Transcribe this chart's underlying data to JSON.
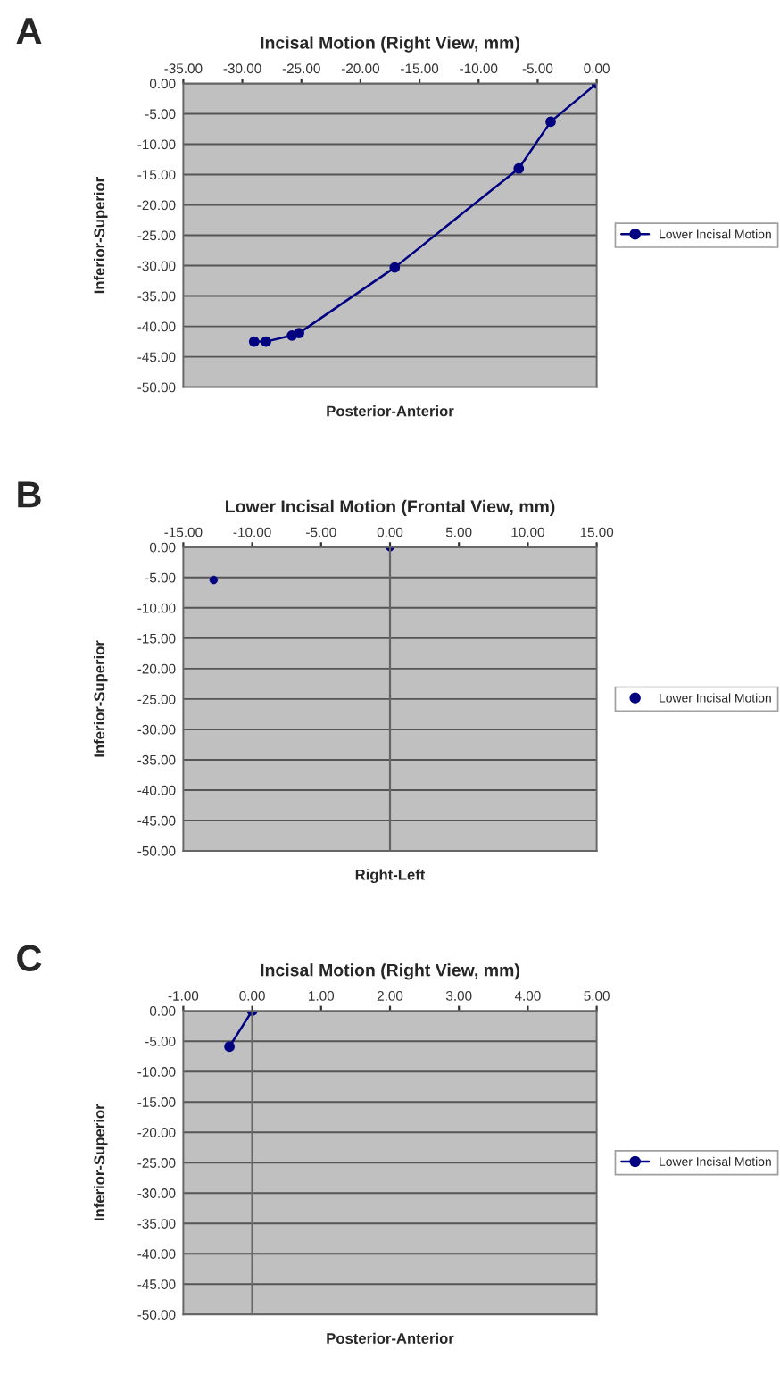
{
  "chart_data": [
    {
      "type": "line",
      "title": "Incisal Motion (Right View, mm)",
      "xlabel": "Posterior-Anterior",
      "ylabel": "Inferior-Superior",
      "annotations": [
        "A"
      ],
      "series": [
        {
          "name": "Lower Incisal Motion",
          "color": "#000080",
          "x": [
            0,
            -3.9,
            -6.6,
            -17.1,
            -25.2,
            -25.8,
            -28.0,
            -29.0
          ],
          "values": [
            0,
            -6.3,
            -14.0,
            -30.3,
            -41.1,
            -41.5,
            -42.5,
            -42.5
          ]
        }
      ],
      "xlim": [
        -35,
        0
      ],
      "xticks": [
        {
          "value": -35,
          "label": "-35.00"
        },
        {
          "value": -30,
          "label": "-30.00"
        },
        {
          "value": -25,
          "label": "-25.00"
        },
        {
          "value": -20,
          "label": "-20.00"
        },
        {
          "value": -15,
          "label": "-15.00"
        },
        {
          "value": -10,
          "label": "-10.00"
        },
        {
          "value": -5,
          "label": "-5.00"
        },
        {
          "value": 0,
          "label": "0.00"
        }
      ],
      "ylim": [
        -50,
        0
      ],
      "yticks": [
        {
          "value": 0,
          "label": "0.00"
        },
        {
          "value": -5,
          "label": "-5.00"
        },
        {
          "value": -10,
          "label": "-10.00"
        },
        {
          "value": -15,
          "label": "-15.00"
        },
        {
          "value": -20,
          "label": "-20.00"
        },
        {
          "value": -25,
          "label": "-25.00"
        },
        {
          "value": -30,
          "label": "-30.00"
        },
        {
          "value": -35,
          "label": "-35.00"
        },
        {
          "value": -40,
          "label": "-40.00"
        },
        {
          "value": -45,
          "label": "-45.00"
        },
        {
          "value": -50,
          "label": "-50.00"
        }
      ],
      "grid": "y",
      "legend": "right",
      "marker": "circle",
      "line_style": "solid"
    },
    {
      "type": "scatter",
      "title": "Lower Incisal Motion (Frontal View, mm)",
      "xlabel": "Right-Left",
      "ylabel": "Inferior-Superior",
      "annotations": [
        "B"
      ],
      "series": [
        {
          "name": "Lower Incisal Motion",
          "color": "#000080",
          "x": [
            0,
            -12.8
          ],
          "values": [
            0,
            -5.4
          ]
        }
      ],
      "xlim": [
        -15,
        15
      ],
      "xticks": [
        {
          "value": -15,
          "label": "-15.00"
        },
        {
          "value": -10,
          "label": "-10.00"
        },
        {
          "value": -5,
          "label": "-5.00"
        },
        {
          "value": 0,
          "label": "0.00"
        },
        {
          "value": 5,
          "label": "5.00"
        },
        {
          "value": 10,
          "label": "10.00"
        },
        {
          "value": 15,
          "label": "15.00"
        }
      ],
      "ylim": [
        -50,
        0
      ],
      "yticks": [
        {
          "value": 0,
          "label": "0.00"
        },
        {
          "value": -5,
          "label": "-5.00"
        },
        {
          "value": -10,
          "label": "-10.00"
        },
        {
          "value": -15,
          "label": "-15.00"
        },
        {
          "value": -20,
          "label": "-20.00"
        },
        {
          "value": -25,
          "label": "-25.00"
        },
        {
          "value": -30,
          "label": "-30.00"
        },
        {
          "value": -35,
          "label": "-35.00"
        },
        {
          "value": -40,
          "label": "-40.00"
        },
        {
          "value": -45,
          "label": "-45.00"
        },
        {
          "value": -50,
          "label": "-50.00"
        }
      ],
      "grid": "y",
      "legend": "right",
      "marker": "circle",
      "ref_lines": [
        {
          "axis": "x",
          "value": 0
        }
      ]
    },
    {
      "type": "line",
      "title": "Incisal Motion (Right View, mm)",
      "xlabel": "Posterior-Anterior",
      "ylabel": "Inferior-Superior",
      "annotations": [
        "C"
      ],
      "series": [
        {
          "name": "Lower Incisal Motion",
          "color": "#000080",
          "x": [
            0,
            -0.33
          ],
          "values": [
            0,
            -5.9
          ]
        }
      ],
      "ref_lines": [
        {
          "axis": "x",
          "value": 0
        }
      ],
      "xlim": [
        -1,
        5
      ],
      "xticks": [
        {
          "value": -1,
          "label": "-1.00"
        },
        {
          "value": 0,
          "label": "0.00"
        },
        {
          "value": 1,
          "label": "1.00"
        },
        {
          "value": 2,
          "label": "2.00"
        },
        {
          "value": 3,
          "label": "3.00"
        },
        {
          "value": 4,
          "label": "4.00"
        },
        {
          "value": 5,
          "label": "5.00"
        }
      ],
      "ylim": [
        -50,
        0
      ],
      "yticks": [
        {
          "value": 0,
          "label": "0.00"
        },
        {
          "value": -5,
          "label": "-5.00"
        },
        {
          "value": -10,
          "label": "-10.00"
        },
        {
          "value": -15,
          "label": "-15.00"
        },
        {
          "value": -20,
          "label": "-20.00"
        },
        {
          "value": -25,
          "label": "-25.00"
        },
        {
          "value": -30,
          "label": "-30.00"
        },
        {
          "value": -35,
          "label": "-35.00"
        },
        {
          "value": -40,
          "label": "-40.00"
        },
        {
          "value": -45,
          "label": "-45.00"
        },
        {
          "value": -50,
          "label": "-50.00"
        }
      ],
      "grid": "y",
      "legend": "right",
      "marker": "circle",
      "line_style": "solid"
    }
  ]
}
